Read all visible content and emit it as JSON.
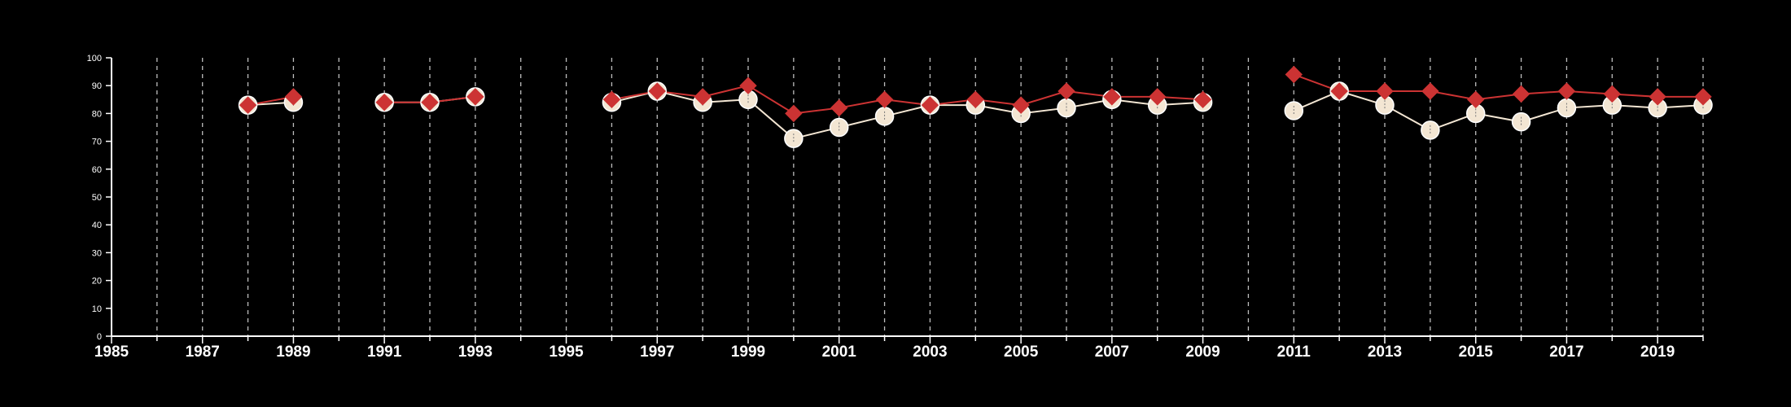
{
  "chart_data": {
    "type": "line",
    "title": "",
    "xlabel": "",
    "ylabel": "",
    "xlim": [
      1985,
      2020
    ],
    "ylim": [
      0,
      100
    ],
    "yticks": [
      0,
      10,
      20,
      30,
      40,
      50,
      60,
      70,
      80,
      90,
      100
    ],
    "xticks": [
      1985,
      1987,
      1989,
      1991,
      1993,
      1995,
      1997,
      1999,
      2001,
      2003,
      2005,
      2007,
      2009,
      2011,
      2013,
      2015,
      2017,
      2019
    ],
    "vertical_gridlines": "dashed, every year from 1986 to 2020",
    "legend": "none",
    "series": [
      {
        "marker": "circle",
        "color": "#f3e6d3",
        "x": [
          1988,
          1989,
          1991,
          1992,
          1993,
          1996,
          1997,
          1998,
          1999,
          2000,
          2001,
          2002,
          2003,
          2004,
          2005,
          2006,
          2007,
          2008,
          2009,
          2011,
          2012,
          2013,
          2014,
          2015,
          2016,
          2017,
          2018,
          2019,
          2020
        ],
        "values": [
          83,
          84,
          84,
          84,
          86,
          84,
          88,
          84,
          85,
          71,
          75,
          79,
          83,
          83,
          80,
          82,
          85,
          83,
          84,
          81,
          88,
          83,
          74,
          80,
          77,
          82,
          83,
          82,
          83
        ]
      },
      {
        "marker": "diamond",
        "color": "#cc3333",
        "x": [
          1988,
          1989,
          1991,
          1992,
          1993,
          1996,
          1997,
          1998,
          1999,
          2000,
          2001,
          2002,
          2003,
          2004,
          2005,
          2006,
          2007,
          2008,
          2009,
          2011,
          2012,
          2013,
          2014,
          2015,
          2016,
          2017,
          2018,
          2019,
          2020
        ],
        "values": [
          83,
          86,
          84,
          84,
          86,
          85,
          88,
          86,
          90,
          80,
          82,
          85,
          83,
          85,
          83,
          88,
          86,
          86,
          85,
          94,
          88,
          88,
          88,
          85,
          87,
          88,
          87,
          86,
          86
        ]
      }
    ]
  }
}
